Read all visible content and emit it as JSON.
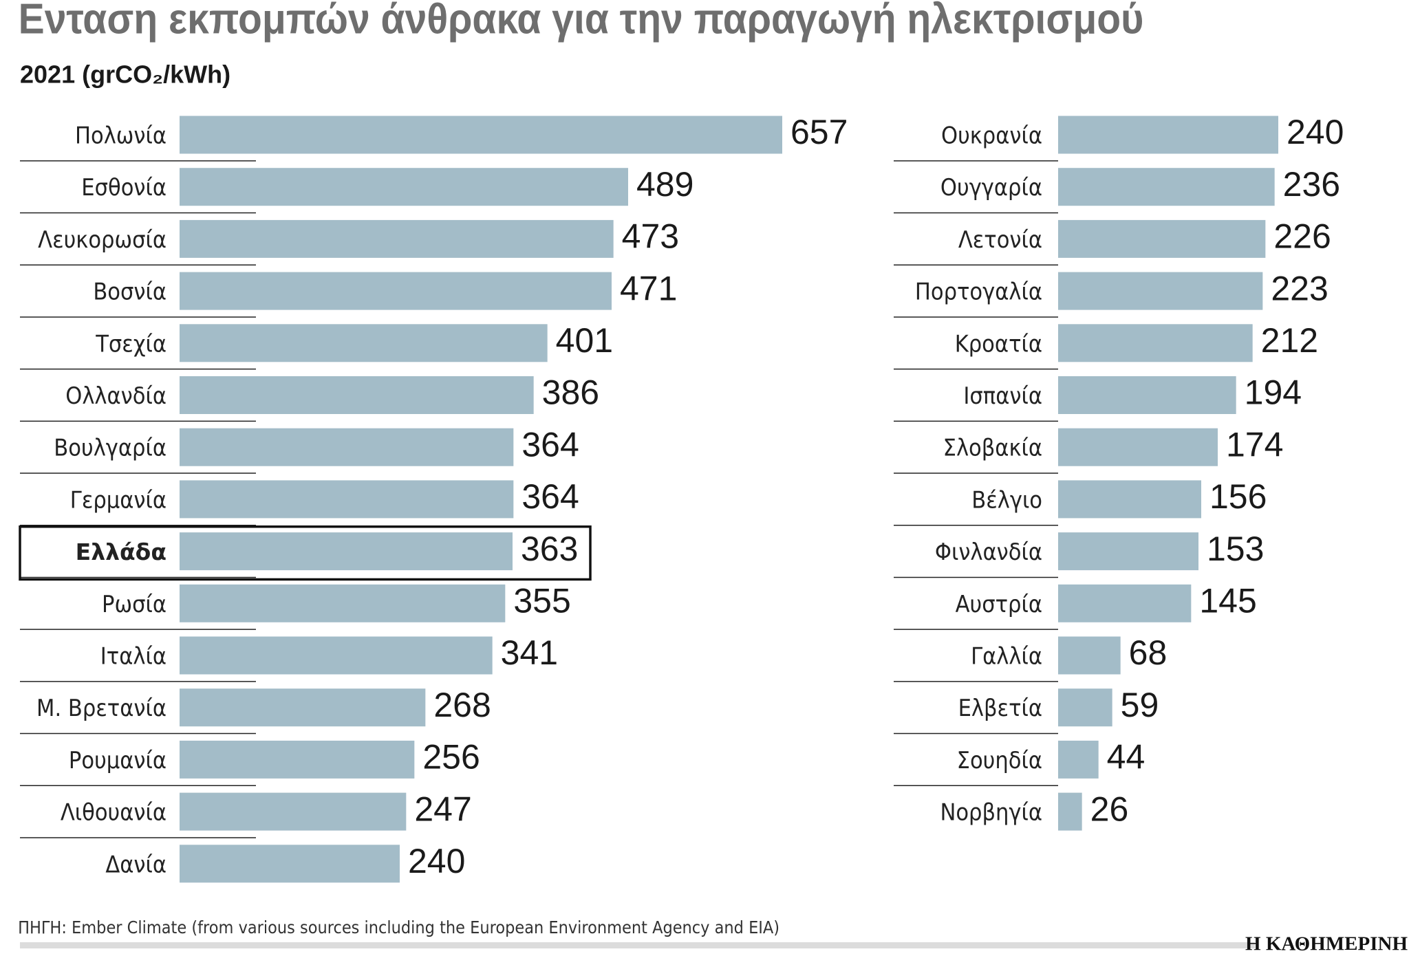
{
  "title": "Ενταση εκπομπών άνθρακα για την παραγωγή ηλεκτρισμού",
  "subtitle": "2021 (grCO₂/kWh)",
  "source": "ΠΗΓΗ: Ember Climate (from various sources including the European Environment Agency and EIA)",
  "brand": "Η ΚΑΘΗΜΕΡΙΝΗ",
  "chart_data": [
    {
      "type": "bar",
      "orientation": "horizontal",
      "color": "#a3bcc8",
      "highlight_category": "Ελλάδα",
      "categories": [
        "Πολωνία",
        "Εσθονία",
        "Λευκορωσία",
        "Βοσνία",
        "Τσεχία",
        "Ολλανδία",
        "Βουλγαρία",
        "Γερμανία",
        "Ελλάδα",
        "Ρωσία",
        "Ιταλία",
        "Μ. Βρετανία",
        "Ρουμανία",
        "Λιθουανία",
        "Δανία"
      ],
      "values": [
        657,
        489,
        473,
        471,
        401,
        386,
        364,
        364,
        363,
        355,
        341,
        268,
        256,
        247,
        240
      ]
    },
    {
      "type": "bar",
      "orientation": "horizontal",
      "color": "#a3bcc8",
      "categories": [
        "Ουκρανία",
        "Ουγγαρία",
        "Λετονία",
        "Πορτογαλία",
        "Κροατία",
        "Ισπανία",
        "Σλοβακία",
        "Βέλγιο",
        "Φινλανδία",
        "Αυστρία",
        "Γαλλία",
        "Ελβετία",
        "Σουηδία",
        "Νορβηγία"
      ],
      "values": [
        240,
        236,
        226,
        223,
        212,
        194,
        174,
        156,
        153,
        145,
        68,
        59,
        44,
        26
      ]
    }
  ]
}
